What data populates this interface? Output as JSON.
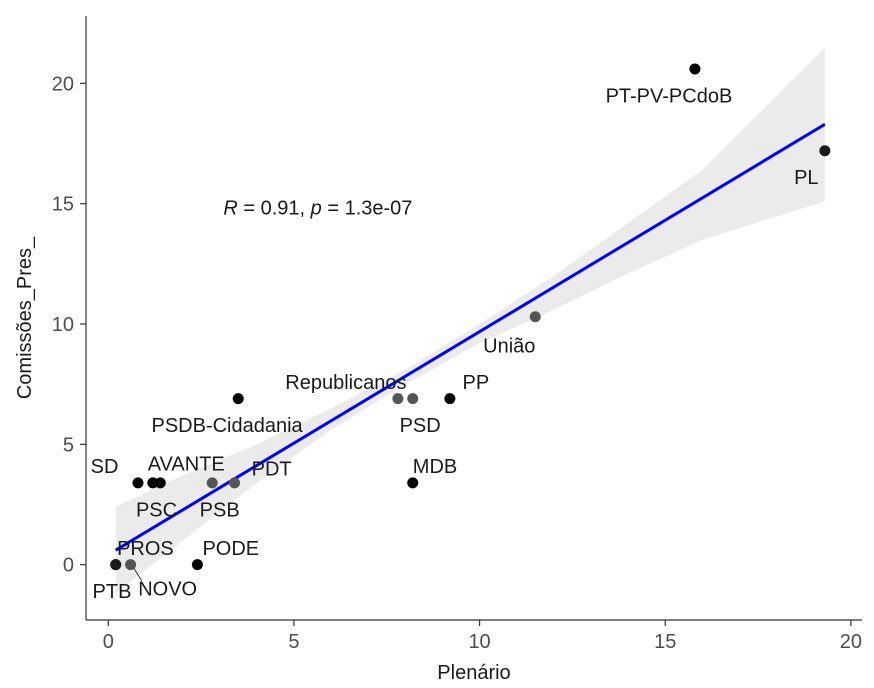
{
  "chart_data": {
    "type": "scatter",
    "xlabel": "Plenário",
    "ylabel": "Comissões_Pres_",
    "xlim": [
      -0.6,
      20.3
    ],
    "ylim": [
      -2.3,
      22.8
    ],
    "xticks": [
      0,
      5,
      10,
      15,
      20
    ],
    "yticks": [
      0,
      5,
      10,
      15,
      20
    ],
    "grid": false,
    "annotation": {
      "r_symbol": "R",
      "r_eq": " = 0.91, ",
      "p_symbol": "p",
      "p_eq": " = 1.3e-07",
      "x": 3.1,
      "y": 14.85
    },
    "regression": {
      "x0": 0.2,
      "y0": 0.6,
      "x1": 19.3,
      "y1": 18.3,
      "ci": [
        [
          0.2,
          2.4,
          -1.2
        ],
        [
          2.0,
          3.7,
          1.0
        ],
        [
          4.0,
          5.0,
          3.4
        ],
        [
          6.0,
          6.5,
          5.6
        ],
        [
          8.0,
          8.1,
          7.5
        ],
        [
          10.0,
          10.0,
          9.2
        ],
        [
          12.0,
          12.0,
          10.6
        ],
        [
          14.0,
          14.2,
          12.1
        ],
        [
          16.0,
          16.4,
          13.5
        ],
        [
          19.3,
          21.5,
          15.1
        ]
      ],
      "line_color": "#0000ff",
      "band_color": "#ebebeb"
    },
    "points": [
      {
        "party": "PT-PV-PCdoB",
        "x": 15.8,
        "y": 20.6,
        "color": "#000000",
        "lx": 15.1,
        "ly": 19.5,
        "anchor": "middle"
      },
      {
        "party": "PL",
        "x": 19.3,
        "y": 17.2,
        "color": "#1a1a1a",
        "lx": 18.8,
        "ly": 16.1,
        "anchor": "middle"
      },
      {
        "party": "União",
        "x": 11.5,
        "y": 10.3,
        "color": "#555555",
        "lx": 10.8,
        "ly": 9.1,
        "anchor": "middle"
      },
      {
        "party": "Republicanos",
        "x": 7.8,
        "y": 6.9,
        "color": "#555555",
        "lx": 6.4,
        "ly": 7.6,
        "anchor": "middle"
      },
      {
        "party": "PSD",
        "x": 8.2,
        "y": 6.9,
        "color": "#555555",
        "lx": 8.4,
        "ly": 5.8,
        "anchor": "middle"
      },
      {
        "party": "PP",
        "x": 9.2,
        "y": 6.9,
        "color": "#000000",
        "lx": 9.9,
        "ly": 7.6,
        "anchor": "middle"
      },
      {
        "party": "PSDB-Cidadania",
        "x": 3.5,
        "y": 6.9,
        "color": "#000000",
        "lx": 3.2,
        "ly": 5.8,
        "anchor": "middle"
      },
      {
        "party": "MDB",
        "x": 8.2,
        "y": 3.4,
        "color": "#000000",
        "lx": 8.8,
        "ly": 4.1,
        "anchor": "middle"
      },
      {
        "party": "SD",
        "x": 0.8,
        "y": 3.4,
        "color": "#000000",
        "lx": -0.1,
        "ly": 4.1,
        "anchor": "middle"
      },
      {
        "party": "AVANTE",
        "x": 1.2,
        "y": 3.4,
        "color": "#000000",
        "lx": 2.1,
        "ly": 4.2,
        "anchor": "middle"
      },
      {
        "party": "PSC",
        "x": 1.4,
        "y": 3.4,
        "color": "#000000",
        "lx": 1.3,
        "ly": 2.3,
        "anchor": "middle"
      },
      {
        "party": "PSB",
        "x": 2.8,
        "y": 3.4,
        "color": "#555555",
        "lx": 3.0,
        "ly": 2.3,
        "anchor": "middle"
      },
      {
        "party": "PDT",
        "x": 3.4,
        "y": 3.4,
        "color": "#555555",
        "lx": 4.4,
        "ly": 4.0,
        "anchor": "middle"
      },
      {
        "party": "PROS",
        "x": 0.2,
        "y": 0.0,
        "color": "#1a1a1a",
        "lx": 1.0,
        "ly": 0.7,
        "anchor": "middle"
      },
      {
        "party": "PTB",
        "x": 0.2,
        "y": 0.0,
        "color": "#1a1a1a",
        "lx": 0.1,
        "ly": -1.1,
        "anchor": "middle"
      },
      {
        "party": "NOVO",
        "x": 0.6,
        "y": 0.0,
        "color": "#555555",
        "lx": 1.6,
        "ly": -1.0,
        "anchor": "middle",
        "leader": true
      },
      {
        "party": "PODE",
        "x": 2.4,
        "y": 0.0,
        "color": "#000000",
        "lx": 3.3,
        "ly": 0.7,
        "anchor": "middle"
      }
    ]
  }
}
